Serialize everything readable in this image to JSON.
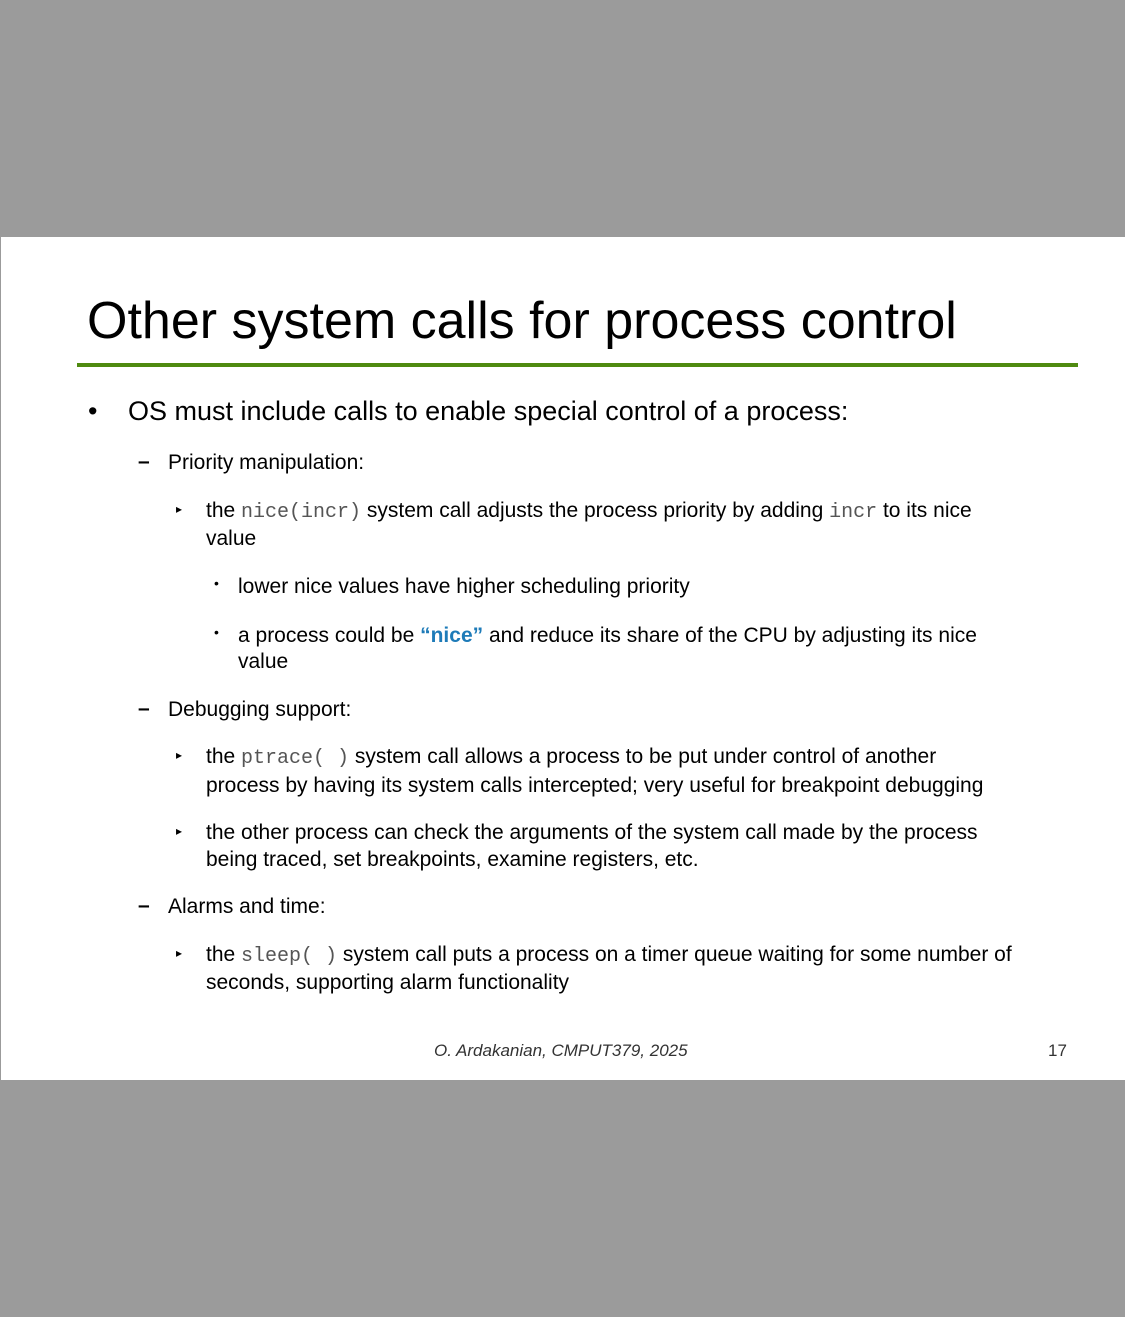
{
  "slide": {
    "title": "Other system calls for process control",
    "bullet": "OS must include calls to enable special control of a process:",
    "priority": {
      "heading": "Priority manipulation:",
      "nice": {
        "pre": "the ",
        "code1": "nice(incr)",
        "mid": " system call adjusts the process priority by adding ",
        "code2": "incr",
        "post": " to its nice",
        "line2": "value"
      },
      "sub1": "lower nice values have higher scheduling priority",
      "sub2": {
        "pre": "a process could be ",
        "emph": "“nice”",
        "post": " and reduce its share of the CPU by adjusting its nice",
        "line2": "value"
      }
    },
    "debugging": {
      "heading": "Debugging support:",
      "ptrace": {
        "pre": "the ",
        "code": "ptrace( )",
        "post": " system call allows a process to be put under control of another",
        "line2": "process by having its system calls intercepted; very useful for breakpoint debugging"
      },
      "other": {
        "line1": "the other process can check the arguments of the system call made by the process",
        "line2": "being traced, set breakpoints, examine registers, etc."
      }
    },
    "alarms": {
      "heading": "Alarms and time:",
      "sleep": {
        "pre": "the ",
        "code": "sleep( )",
        "post": " system call puts a process on a timer queue waiting for some number of",
        "line2": "seconds, supporting alarm functionality"
      }
    },
    "footer": "O. Ardakanian, CMPUT379, 2025",
    "page_number": "17"
  }
}
